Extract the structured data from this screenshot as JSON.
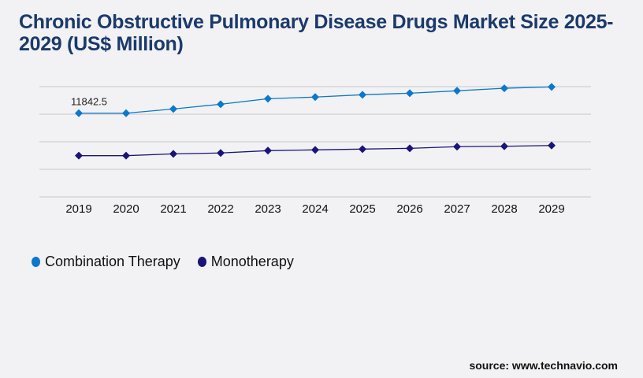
{
  "title": "Chronic Obstructive Pulmonary Disease Drugs Market Size 2025-2029 (US$ Million)",
  "source": "source: www.technavio.com",
  "chart_data": {
    "type": "line",
    "title": "Chronic Obstructive Pulmonary Disease Drugs Market Size 2025-2029 (US$ Million)",
    "xlabel": "",
    "ylabel": "",
    "categories": [
      "2019",
      "2020",
      "2021",
      "2022",
      "2023",
      "2024",
      "2025",
      "2026",
      "2027",
      "2028",
      "2029"
    ],
    "ylim": [
      0,
      15600
    ],
    "grid": true,
    "legend": "bottom-left",
    "series": [
      {
        "name": "Combination Therapy",
        "color": "#0a78cc",
        "values": [
          11842.5,
          11842.5,
          12440,
          13110,
          13890,
          14120,
          14450,
          14670,
          15010,
          15370,
          15560
        ]
      },
      {
        "name": "Monotherapy",
        "color": "#1a1478",
        "values": [
          5830,
          5830,
          6090,
          6210,
          6540,
          6650,
          6760,
          6870,
          7100,
          7160,
          7270
        ]
      }
    ],
    "annotations": [
      {
        "series": 0,
        "index": 0,
        "text": "11842.5"
      }
    ]
  }
}
